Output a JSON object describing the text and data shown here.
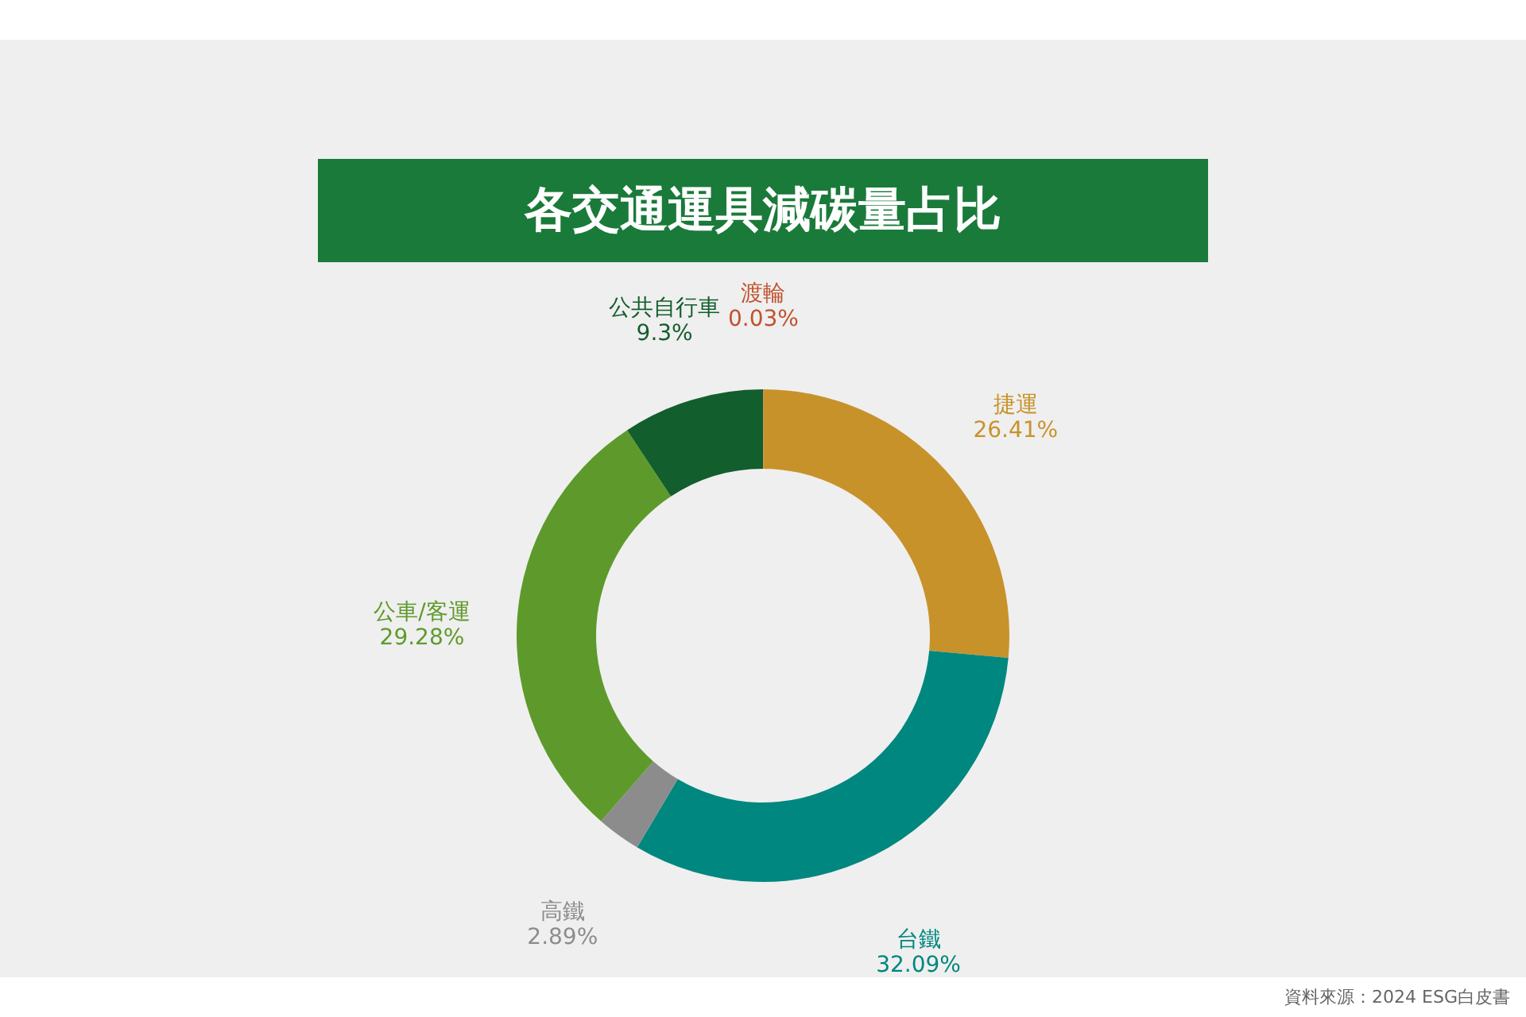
{
  "chart_data": {
    "type": "donut",
    "title": "各交通運具減碳量占比",
    "categories": [
      "渡輪",
      "捷運",
      "台鐵",
      "高鐵",
      "公車/客運",
      "公共自行車"
    ],
    "values": [
      0.03,
      26.41,
      32.09,
      2.89,
      29.28,
      9.3
    ],
    "value_labels": [
      "0.03%",
      "26.41%",
      "32.09%",
      "2.89%",
      "29.28%",
      "9.3%"
    ],
    "colors": [
      "#c0532f",
      "#c8922a",
      "#00877f",
      "#8c8c8c",
      "#5e9a2b",
      "#125e2c"
    ],
    "annotations": [
      "資料來源：2024 ESG白皮書"
    ]
  }
}
